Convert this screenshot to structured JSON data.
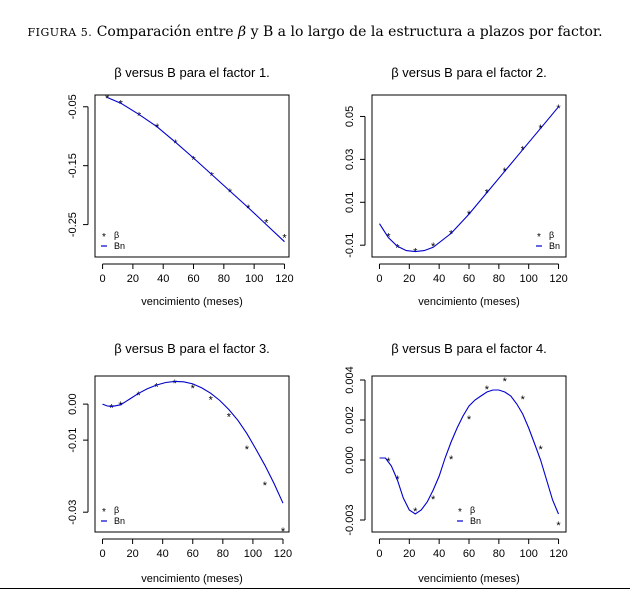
{
  "caption": {
    "label": "FIGURA 5.",
    "text_before": "Comparación entre",
    "beta_symbol": "β",
    "text_after": "y B a lo largo de la estructura a plazos por factor."
  },
  "chart_data": [
    {
      "type": "line",
      "title": "β versus B para el factor 1.",
      "xlabel": "vencimiento (meses)",
      "ylabel": "",
      "xlim": [
        -5,
        123
      ],
      "ylim": [
        -0.305,
        -0.03
      ],
      "xticks": [
        0,
        20,
        40,
        60,
        80,
        100,
        120
      ],
      "xtick_labels": [
        "0",
        "20",
        "40",
        "60",
        "80",
        "100",
        "120"
      ],
      "yticks": [
        -0.05,
        -0.15,
        -0.25
      ],
      "ytick_labels": [
        "-0.05",
        "-0.15",
        "-0.25"
      ],
      "legend": {
        "position": "bottom-left",
        "entries": [
          "β",
          "Bn"
        ]
      },
      "series": [
        {
          "name": "β",
          "kind": "points",
          "color": "#ff0000",
          "x": [
            3,
            12,
            24,
            36,
            48,
            60,
            72,
            84,
            96,
            108,
            120
          ],
          "y": [
            -0.033,
            -0.043,
            -0.063,
            -0.083,
            -0.11,
            -0.138,
            -0.165,
            -0.193,
            -0.22,
            -0.245,
            -0.27
          ]
        },
        {
          "name": "Bn",
          "kind": "line",
          "color": "#0000cc",
          "x": [
            3,
            12,
            24,
            36,
            48,
            60,
            72,
            84,
            96,
            108,
            120
          ],
          "y": [
            -0.034,
            -0.044,
            -0.063,
            -0.084,
            -0.11,
            -0.137,
            -0.165,
            -0.193,
            -0.221,
            -0.25,
            -0.279
          ]
        }
      ]
    },
    {
      "type": "line",
      "title": "β versus B para el factor 2.",
      "xlabel": "vencimiento (meses)",
      "ylabel": "",
      "xlim": [
        -5,
        125
      ],
      "ylim": [
        -0.0155,
        0.06
      ],
      "xticks": [
        0,
        20,
        40,
        60,
        80,
        100,
        120
      ],
      "xtick_labels": [
        "0",
        "20",
        "40",
        "60",
        "80",
        "100",
        "120"
      ],
      "yticks": [
        -0.01,
        0.01,
        0.03,
        0.05
      ],
      "ytick_labels": [
        "-0.01",
        "0.01",
        "0.03",
        "0.05"
      ],
      "legend": {
        "position": "bottom-right",
        "entries": [
          "β",
          "Bn"
        ]
      },
      "series": [
        {
          "name": "β",
          "kind": "points",
          "color": "#ff0000",
          "x": [
            6,
            12,
            24,
            36,
            48,
            60,
            72,
            84,
            96,
            108,
            120
          ],
          "y": [
            -0.0055,
            -0.0105,
            -0.0125,
            -0.01,
            -0.004,
            0.005,
            0.015,
            0.025,
            0.035,
            0.045,
            0.0545
          ]
        },
        {
          "name": "Bn",
          "kind": "line",
          "color": "#0000cc",
          "x": [
            0,
            6,
            12,
            18,
            24,
            30,
            36,
            48,
            60,
            72,
            84,
            96,
            108,
            120
          ],
          "y": [
            0.0,
            -0.0065,
            -0.0105,
            -0.0125,
            -0.013,
            -0.0125,
            -0.011,
            -0.0045,
            0.0045,
            0.0145,
            0.0245,
            0.0345,
            0.0445,
            0.0545
          ]
        }
      ]
    },
    {
      "type": "line",
      "title": "β versus B para el factor 3.",
      "xlabel": "vencimiento (meses)",
      "ylabel": "",
      "xlim": [
        -5,
        124
      ],
      "ylim": [
        -0.0355,
        0.0078
      ],
      "xticks": [
        0,
        20,
        40,
        60,
        80,
        100,
        120
      ],
      "xtick_labels": [
        "0",
        "20",
        "40",
        "60",
        "80",
        "100",
        "120"
      ],
      "yticks": [
        -0.03,
        -0.01,
        0.0
      ],
      "ytick_labels": [
        "-0.03",
        "-0.01",
        "0.00"
      ],
      "legend": {
        "position": "bottom-left",
        "entries": [
          "β",
          "Bn"
        ]
      },
      "series": [
        {
          "name": "β",
          "kind": "points",
          "color": "#ff0000",
          "x": [
            6,
            12,
            24,
            36,
            48,
            60,
            72,
            84,
            96,
            108,
            120
          ],
          "y": [
            -0.0006,
            0.0,
            0.0028,
            0.0052,
            0.0062,
            0.0048,
            0.0016,
            -0.0032,
            -0.0122,
            -0.0222,
            -0.035
          ]
        },
        {
          "name": "Bn",
          "kind": "line",
          "color": "#0000cc",
          "x": [
            0,
            3,
            6,
            12,
            18,
            24,
            30,
            36,
            42,
            48,
            54,
            60,
            66,
            72,
            78,
            84,
            90,
            96,
            102,
            108,
            114,
            120
          ],
          "y": [
            0.0,
            -0.0005,
            -0.0007,
            -0.0002,
            0.0014,
            0.003,
            0.0043,
            0.0053,
            0.006,
            0.0063,
            0.0062,
            0.0056,
            0.0045,
            0.003,
            0.001,
            -0.0015,
            -0.0045,
            -0.0082,
            -0.0125,
            -0.017,
            -0.022,
            -0.0275
          ]
        }
      ]
    },
    {
      "type": "line",
      "title": "β versus B para el factor 4.",
      "xlabel": "vencimiento (meses)",
      "ylabel": "",
      "xlim": [
        -5,
        125
      ],
      "ylim": [
        -0.0036,
        0.0042
      ],
      "xticks": [
        0,
        20,
        40,
        60,
        80,
        100,
        120
      ],
      "xtick_labels": [
        "0",
        "20",
        "40",
        "60",
        "80",
        "100",
        "120"
      ],
      "yticks": [
        -0.003,
        0.0,
        0.002,
        0.004
      ],
      "ytick_labels": [
        "-0.003",
        "0.000",
        "0.002",
        "0.004"
      ],
      "legend": {
        "position": "bottom-center",
        "entries": [
          "β",
          "Bn"
        ]
      },
      "series": [
        {
          "name": "β",
          "kind": "points",
          "color": "#ff0000",
          "x": [
            6,
            12,
            24,
            36,
            48,
            60,
            72,
            84,
            96,
            108,
            120
          ],
          "y": [
            0.0,
            -0.0009,
            -0.0025,
            -0.0019,
            0.0001,
            0.0021,
            0.0036,
            0.004,
            0.0031,
            0.0006,
            -0.0032
          ]
        },
        {
          "name": "Bn",
          "kind": "line",
          "color": "#0000cc",
          "x": [
            0,
            4,
            8,
            12,
            16,
            20,
            24,
            28,
            32,
            36,
            40,
            44,
            48,
            52,
            56,
            60,
            64,
            68,
            72,
            76,
            80,
            84,
            88,
            92,
            96,
            100,
            104,
            108,
            112,
            116,
            120
          ],
          "y": [
            0.0001,
            0.0001,
            -0.0003,
            -0.001,
            -0.0019,
            -0.0025,
            -0.0027,
            -0.0025,
            -0.0021,
            -0.0015,
            -0.0008,
            0.0001,
            0.0009,
            0.0016,
            0.0022,
            0.0027,
            0.003,
            0.0032,
            0.0034,
            0.0035,
            0.0035,
            0.0034,
            0.0032,
            0.0028,
            0.0023,
            0.0016,
            0.0008,
            0.0,
            -0.001,
            -0.002,
            -0.0027
          ]
        }
      ]
    }
  ]
}
